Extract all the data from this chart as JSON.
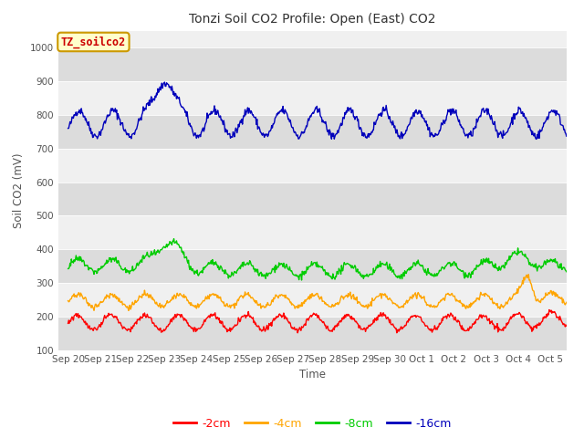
{
  "title": "Tonzi Soil CO2 Profile: Open (East) CO2",
  "xlabel": "Time",
  "ylabel": "Soil CO2 (mV)",
  "ylim": [
    100,
    1050
  ],
  "yticks": [
    100,
    200,
    300,
    400,
    500,
    600,
    700,
    800,
    900,
    1000
  ],
  "band_colors": [
    "#dcdcdc",
    "#f0f0f0"
  ],
  "legend_label": "TZ_soilco2",
  "series": {
    "-2cm": {
      "color": "#ff0000"
    },
    "-4cm": {
      "color": "#ffa500"
    },
    "-8cm": {
      "color": "#00cc00"
    },
    "-16cm": {
      "color": "#0000bb"
    }
  },
  "title_fontsize": 10,
  "axis_label_fontsize": 8.5,
  "tick_fontsize": 7.5
}
